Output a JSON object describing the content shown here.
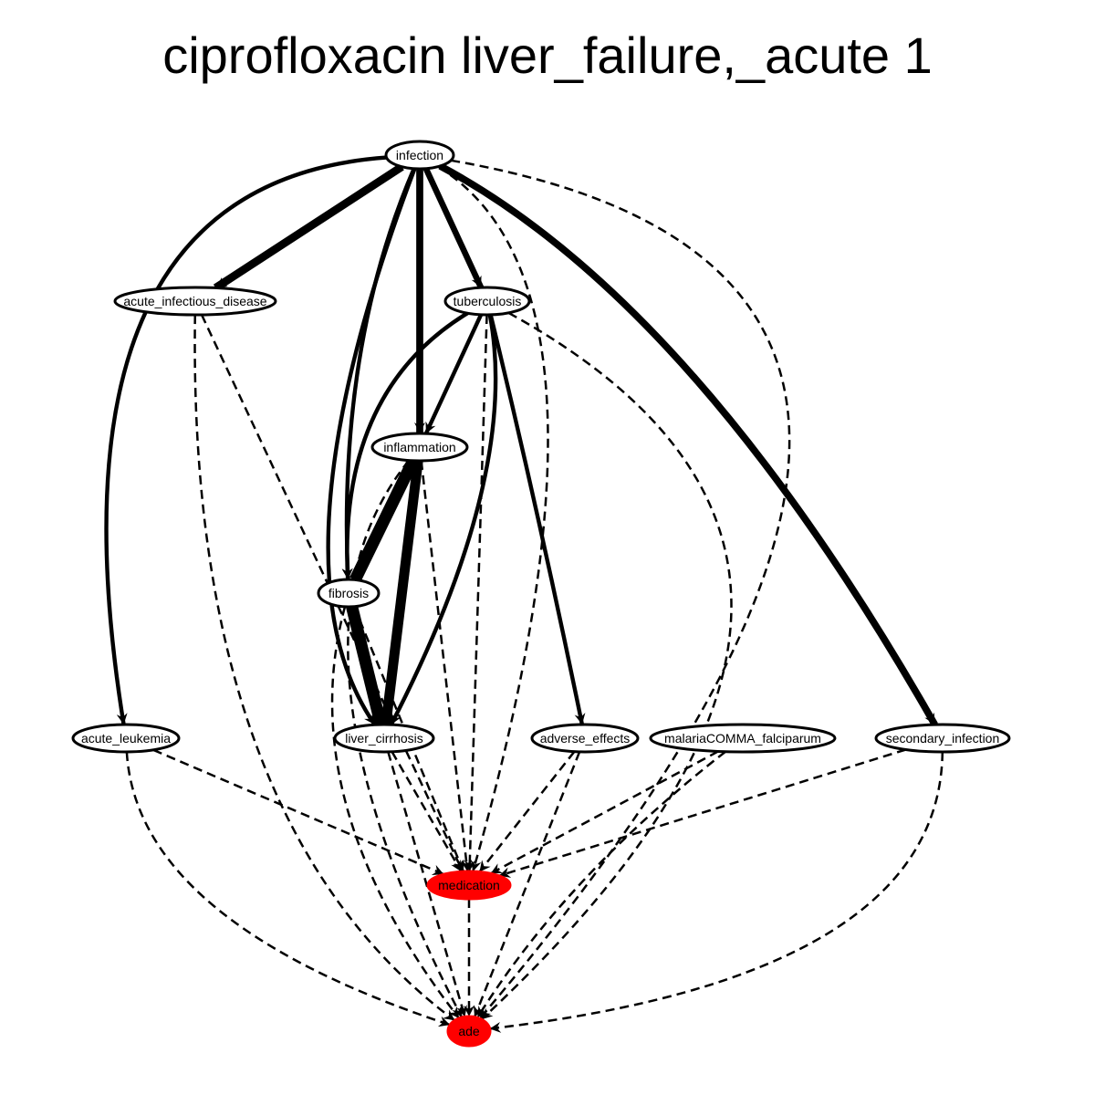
{
  "title": "ciprofloxacin liver_failure,_acute 1",
  "colors": {
    "highlight": "#ff0000",
    "edge": "#000000",
    "node_fill": "#ffffff"
  },
  "nodes": [
    {
      "id": "infection",
      "label": "infection",
      "highlight": false
    },
    {
      "id": "acute_infectious_disease",
      "label": "acute_infectious_disease",
      "highlight": false
    },
    {
      "id": "tuberculosis",
      "label": "tuberculosis",
      "highlight": false
    },
    {
      "id": "inflammation",
      "label": "inflammation",
      "highlight": false
    },
    {
      "id": "fibrosis",
      "label": "fibrosis",
      "highlight": false
    },
    {
      "id": "acute_leukemia",
      "label": "acute_leukemia",
      "highlight": false
    },
    {
      "id": "liver_cirrhosis",
      "label": "liver_cirrhosis",
      "highlight": false
    },
    {
      "id": "adverse_effects",
      "label": "adverse_effects",
      "highlight": false
    },
    {
      "id": "malariaCOMMA_falciparum",
      "label": "malariaCOMMA_falciparum",
      "highlight": false
    },
    {
      "id": "secondary_infection",
      "label": "secondary_infection",
      "highlight": false
    },
    {
      "id": "medication",
      "label": "medication",
      "highlight": true
    },
    {
      "id": "ade",
      "label": "ade",
      "highlight": true
    }
  ],
  "edges": [
    {
      "from": "infection",
      "to": "acute_infectious_disease",
      "style": "solid",
      "weight": 8
    },
    {
      "from": "infection",
      "to": "tuberculosis",
      "style": "solid",
      "weight": 6
    },
    {
      "from": "infection",
      "to": "inflammation",
      "style": "solid",
      "weight": 7
    },
    {
      "from": "infection",
      "to": "fibrosis",
      "style": "solid",
      "weight": 4
    },
    {
      "from": "infection",
      "to": "liver_cirrhosis",
      "style": "solid",
      "weight": 4
    },
    {
      "from": "infection",
      "to": "acute_leukemia",
      "style": "solid",
      "weight": 4
    },
    {
      "from": "infection",
      "to": "secondary_infection",
      "style": "solid",
      "weight": 7
    },
    {
      "from": "infection",
      "to": "medication",
      "style": "dashed",
      "weight": 2
    },
    {
      "from": "infection",
      "to": "ade",
      "style": "dashed",
      "weight": 2
    },
    {
      "from": "acute_infectious_disease",
      "to": "medication",
      "style": "dashed",
      "weight": 2
    },
    {
      "from": "acute_infectious_disease",
      "to": "ade",
      "style": "dashed",
      "weight": 2
    },
    {
      "from": "tuberculosis",
      "to": "inflammation",
      "style": "solid",
      "weight": 4
    },
    {
      "from": "tuberculosis",
      "to": "fibrosis",
      "style": "solid",
      "weight": 4
    },
    {
      "from": "tuberculosis",
      "to": "liver_cirrhosis",
      "style": "solid",
      "weight": 4
    },
    {
      "from": "tuberculosis",
      "to": "adverse_effects",
      "style": "solid",
      "weight": 4
    },
    {
      "from": "tuberculosis",
      "to": "medication",
      "style": "dashed",
      "weight": 2
    },
    {
      "from": "tuberculosis",
      "to": "ade",
      "style": "dashed",
      "weight": 2
    },
    {
      "from": "inflammation",
      "to": "fibrosis",
      "style": "solid",
      "weight": 12
    },
    {
      "from": "inflammation",
      "to": "liver_cirrhosis",
      "style": "solid",
      "weight": 10
    },
    {
      "from": "inflammation",
      "to": "medication",
      "style": "dashed",
      "weight": 2
    },
    {
      "from": "inflammation",
      "to": "ade",
      "style": "dashed",
      "weight": 2
    },
    {
      "from": "fibrosis",
      "to": "liver_cirrhosis",
      "style": "solid",
      "weight": 12
    },
    {
      "from": "fibrosis",
      "to": "medication",
      "style": "dashed",
      "weight": 2
    },
    {
      "from": "fibrosis",
      "to": "ade",
      "style": "dashed",
      "weight": 2
    },
    {
      "from": "acute_leukemia",
      "to": "medication",
      "style": "dashed",
      "weight": 2
    },
    {
      "from": "acute_leukemia",
      "to": "ade",
      "style": "dashed",
      "weight": 2
    },
    {
      "from": "liver_cirrhosis",
      "to": "medication",
      "style": "dashed",
      "weight": 2
    },
    {
      "from": "liver_cirrhosis",
      "to": "ade",
      "style": "dashed",
      "weight": 2
    },
    {
      "from": "adverse_effects",
      "to": "medication",
      "style": "dashed",
      "weight": 2
    },
    {
      "from": "adverse_effects",
      "to": "ade",
      "style": "dashed",
      "weight": 2
    },
    {
      "from": "malariaCOMMA_falciparum",
      "to": "medication",
      "style": "dashed",
      "weight": 2
    },
    {
      "from": "malariaCOMMA_falciparum",
      "to": "ade",
      "style": "dashed",
      "weight": 2
    },
    {
      "from": "secondary_infection",
      "to": "medication",
      "style": "dashed",
      "weight": 2
    },
    {
      "from": "secondary_infection",
      "to": "ade",
      "style": "dashed",
      "weight": 2
    },
    {
      "from": "medication",
      "to": "ade",
      "style": "dashed",
      "weight": 2
    }
  ]
}
